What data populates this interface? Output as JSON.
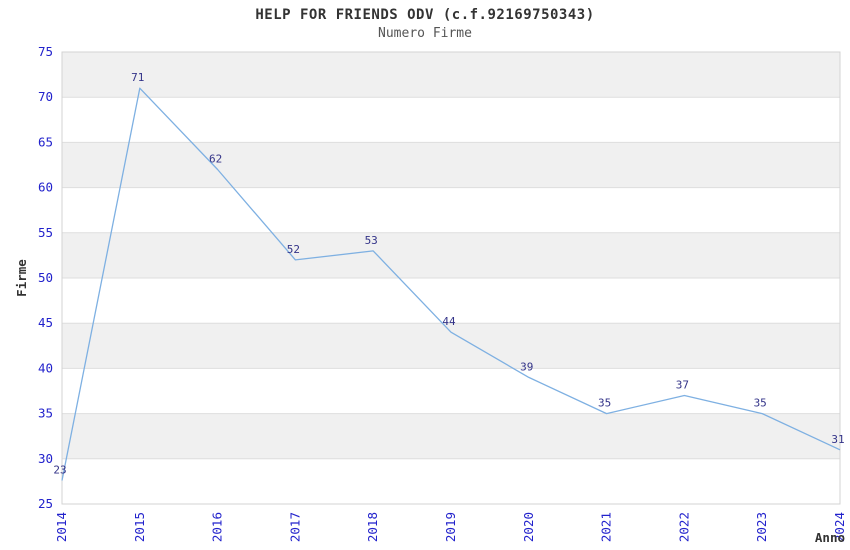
{
  "chart": {
    "title": "HELP FOR FRIENDS ODV (c.f.92169750343)",
    "subtitle": "Numero Firme"
  },
  "chart_data": {
    "type": "line",
    "title": "HELP FOR FRIENDS ODV (c.f.92169750343)",
    "subtitle": "Numero Firme",
    "xlabel": "Anno",
    "ylabel": "Firme",
    "categories": [
      "2014",
      "2015",
      "2016",
      "2017",
      "2018",
      "2019",
      "2020",
      "2021",
      "2022",
      "2023",
      "2024"
    ],
    "values": [
      23,
      71,
      62,
      52,
      53,
      44,
      39,
      35,
      37,
      35,
      31
    ],
    "ylim": [
      25,
      75
    ],
    "ytick_step": 5,
    "yticks": [
      25,
      30,
      35,
      40,
      45,
      50,
      55,
      60,
      65,
      70,
      75
    ],
    "grid": "horizontal-bands",
    "legend": "none",
    "colors": {
      "line": "#7EB0E2",
      "axis_tick_label": "#2222CC",
      "data_label": "#333388",
      "band_fill": "#F0F0F0",
      "gridline": "#DEDEDE",
      "plot_border": "#D3D3D3",
      "title": "#333333",
      "subtitle": "#555555",
      "axis_title": "#333333"
    }
  }
}
